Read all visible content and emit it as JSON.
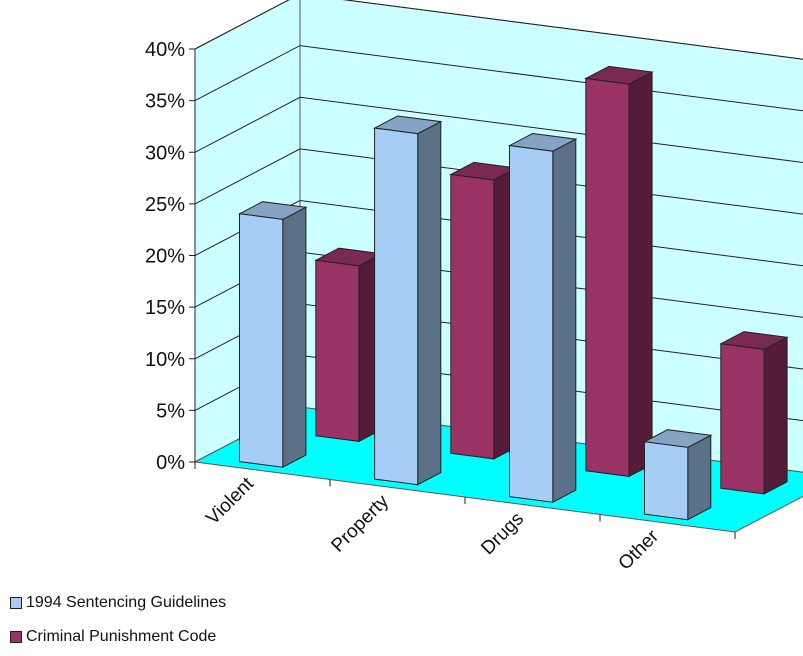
{
  "chart_data": {
    "type": "bar",
    "style": "3d-clustered-column",
    "categories": [
      "Violent",
      "Property",
      "Drugs",
      "Other"
    ],
    "series": [
      {
        "name": "1994 Sentencing Guidelines",
        "values": [
          24,
          34,
          34,
          7
        ],
        "color": "#a6cdf5"
      },
      {
        "name": "Criminal Punishment Code",
        "values": [
          17,
          27,
          38,
          14
        ],
        "color": "#993366"
      }
    ],
    "yticks": [
      "0%",
      "5%",
      "10%",
      "15%",
      "20%",
      "25%",
      "30%",
      "35%",
      "40%"
    ],
    "ylim": [
      0,
      40
    ],
    "grid": true,
    "legend_position": "bottom-left",
    "colors": {
      "wall": "#ccffff",
      "floor": "#00ffff"
    }
  }
}
